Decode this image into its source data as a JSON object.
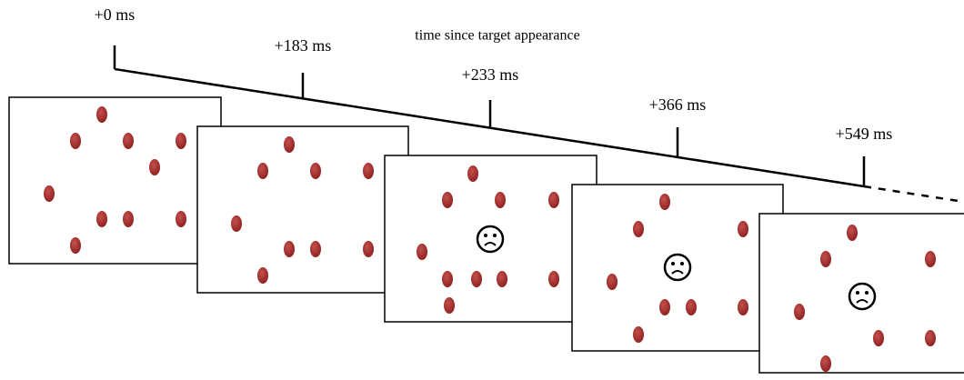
{
  "title": "time since target appearance",
  "timeline": {
    "labels": [
      "+0 ms",
      "+183 ms",
      "+233 ms",
      "+366 ms",
      "+549 ms"
    ]
  }
}
